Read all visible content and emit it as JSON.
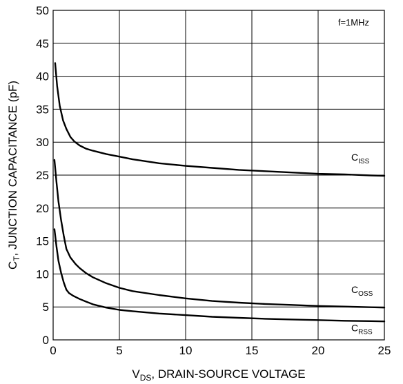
{
  "chart_data": {
    "type": "line",
    "xlabel": {
      "main": "V",
      "sub": "DS",
      "rest": ", DRAIN-SOURCE VOLTAGE"
    },
    "ylabel": {
      "main": "C",
      "sub": "T",
      "rest": ", JUNCTION CAPACITANCE (pF)"
    },
    "xlim": [
      0,
      25
    ],
    "ylim": [
      0,
      50
    ],
    "xticks": [
      0,
      5,
      10,
      15,
      20,
      25
    ],
    "yticks": [
      0,
      5,
      10,
      15,
      20,
      25,
      30,
      35,
      40,
      45,
      50
    ],
    "grid": true,
    "annotation": "f=1MHz",
    "series": [
      {
        "name": "C_ISS",
        "label_main": "C",
        "label_sub": "ISS",
        "label_at": [
          22.5,
          27.2
        ],
        "x": [
          0.15,
          0.3,
          0.5,
          0.75,
          1.0,
          1.3,
          1.6,
          2.0,
          2.5,
          3.0,
          4.0,
          5.0,
          6.0,
          7.0,
          8.0,
          10.0,
          12.0,
          14.0,
          16.0,
          18.0,
          20.0,
          22.0,
          24.0,
          25.0
        ],
        "y": [
          42.0,
          38.5,
          35.5,
          33.3,
          32.0,
          30.8,
          30.1,
          29.5,
          29.0,
          28.7,
          28.2,
          27.8,
          27.4,
          27.1,
          26.8,
          26.4,
          26.1,
          25.8,
          25.6,
          25.4,
          25.2,
          25.1,
          24.95,
          24.9
        ]
      },
      {
        "name": "C_OSS",
        "label_main": "C",
        "label_sub": "OSS",
        "label_at": [
          22.5,
          7.1
        ],
        "x": [
          0.1,
          0.25,
          0.4,
          0.6,
          0.8,
          1.0,
          1.3,
          1.7,
          2.0,
          2.5,
          3.0,
          4.0,
          5.0,
          6.0,
          8.0,
          10.0,
          12.0,
          14.0,
          16.0,
          18.0,
          20.0,
          22.0,
          24.0,
          25.0
        ],
        "y": [
          27.3,
          24.0,
          21.0,
          18.2,
          15.8,
          13.8,
          12.5,
          11.5,
          10.9,
          10.1,
          9.5,
          8.6,
          7.9,
          7.4,
          6.8,
          6.3,
          5.9,
          5.65,
          5.45,
          5.3,
          5.15,
          5.05,
          4.95,
          4.9
        ]
      },
      {
        "name": "C_RSS",
        "label_main": "C",
        "label_sub": "RSS",
        "label_at": [
          22.5,
          1.3
        ],
        "x": [
          0.1,
          0.25,
          0.4,
          0.6,
          0.8,
          1.0,
          1.2,
          1.5,
          2.0,
          2.5,
          3.0,
          4.0,
          5.0,
          6.0,
          8.0,
          10.0,
          12.0,
          14.0,
          16.0,
          18.0,
          20.0,
          22.0,
          24.0,
          25.0
        ],
        "y": [
          16.8,
          14.2,
          12.0,
          10.2,
          8.7,
          7.6,
          7.1,
          6.7,
          6.2,
          5.8,
          5.4,
          4.9,
          4.55,
          4.35,
          4.0,
          3.75,
          3.5,
          3.35,
          3.2,
          3.1,
          3.0,
          2.9,
          2.85,
          2.8
        ]
      }
    ]
  }
}
